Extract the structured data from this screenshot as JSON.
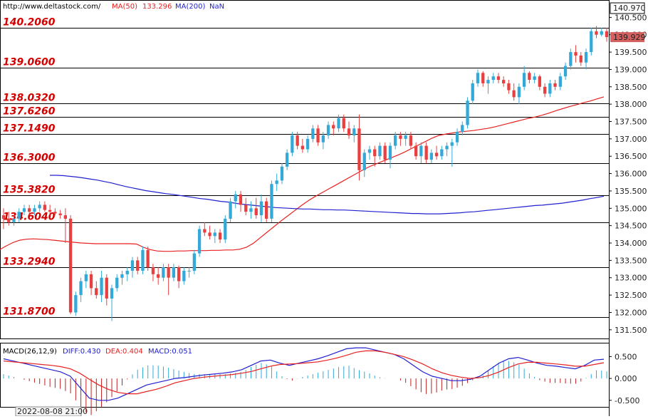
{
  "header": {
    "site": "http://www.deltastock.com/",
    "ma50_label": "MA(50)",
    "ma50_value": "133.296",
    "ma200_label": "MA(200)",
    "ma200_value": "NaN"
  },
  "macd_header": {
    "name": "MACD(26,12,9)",
    "diff_label": "DIFF:0.430",
    "dea_label": "DEA:0.404",
    "macd_label": "MACD:0.051"
  },
  "date_label": "2022-08-08 21:00",
  "chart_data": [
    {
      "type": "candlestick",
      "y_range": [
        131.25,
        141.0
      ],
      "top_price_label": "140.970",
      "current_price_label": "139.929",
      "y_ticks": [
        "140.500",
        "140.000",
        "139.500",
        "139.000",
        "138.500",
        "138.000",
        "137.500",
        "137.000",
        "136.500",
        "136.000",
        "135.500",
        "135.000",
        "134.500",
        "134.000",
        "133.500",
        "133.000",
        "132.500",
        "132.000",
        "131.500"
      ],
      "levels": [
        140.206,
        139.06,
        138.032,
        137.626,
        137.149,
        136.3,
        135.382,
        134.604,
        133.294,
        131.87
      ],
      "level_labels": [
        "140.2060",
        "139.0600",
        "138.0320",
        "137.6260",
        "137.1490",
        "136.3000",
        "135.3820",
        "134.6040",
        "133.2940",
        "131.8700"
      ],
      "colors": {
        "up": "#34a9d8",
        "down": "#e84040",
        "ma50": "#e82020",
        "ma200": "#2020d0",
        "level_line": "#000000",
        "level_text": "#d40000"
      },
      "candles": [
        [
          134.8,
          135.0,
          134.4,
          134.7
        ],
        [
          134.7,
          134.9,
          134.5,
          134.6
        ],
        [
          134.6,
          134.8,
          134.5,
          134.7
        ],
        [
          134.7,
          135.0,
          134.6,
          134.9
        ],
        [
          134.9,
          135.1,
          134.8,
          135.0
        ],
        [
          135.0,
          135.1,
          134.8,
          134.9
        ],
        [
          134.9,
          135.1,
          134.8,
          135.0
        ],
        [
          135.0,
          135.2,
          134.9,
          135.1
        ],
        [
          135.1,
          135.2,
          134.9,
          134.95
        ],
        [
          134.95,
          135.1,
          134.8,
          134.9
        ],
        [
          134.9,
          135.0,
          134.8,
          134.85
        ],
        [
          134.85,
          134.95,
          134.7,
          134.8
        ],
        [
          134.8,
          135.0,
          134.0,
          134.7
        ],
        [
          134.7,
          134.8,
          131.95,
          132.0
        ],
        [
          132.0,
          132.6,
          131.9,
          132.5
        ],
        [
          132.5,
          133.0,
          132.3,
          132.9
        ],
        [
          132.9,
          133.2,
          132.7,
          133.1
        ],
        [
          133.1,
          133.2,
          132.5,
          132.7
        ],
        [
          132.7,
          132.9,
          132.4,
          132.5
        ],
        [
          132.5,
          133.2,
          132.3,
          133.0
        ],
        [
          133.0,
          133.1,
          132.2,
          132.4
        ],
        [
          132.4,
          132.8,
          131.75,
          132.7
        ],
        [
          132.7,
          133.1,
          132.6,
          133.0
        ],
        [
          133.0,
          133.2,
          132.8,
          133.1
        ],
        [
          133.1,
          133.3,
          132.9,
          133.2
        ],
        [
          133.2,
          133.6,
          133.0,
          133.5
        ],
        [
          133.5,
          133.6,
          133.1,
          133.2
        ],
        [
          133.2,
          133.9,
          133.1,
          133.8
        ],
        [
          133.8,
          133.9,
          133.2,
          133.3
        ],
        [
          133.3,
          133.4,
          132.9,
          133.1
        ],
        [
          133.1,
          133.3,
          132.8,
          133.0
        ],
        [
          133.0,
          133.4,
          132.9,
          133.3
        ],
        [
          133.3,
          133.4,
          132.5,
          133.0
        ],
        [
          133.0,
          133.4,
          132.9,
          133.3
        ],
        [
          133.3,
          133.35,
          132.7,
          132.9
        ],
        [
          132.9,
          133.3,
          132.8,
          133.2
        ],
        [
          133.2,
          133.3,
          133.0,
          133.2
        ],
        [
          133.2,
          133.8,
          133.1,
          133.7
        ],
        [
          133.7,
          134.5,
          133.6,
          134.4
        ],
        [
          134.4,
          134.6,
          134.2,
          134.3
        ],
        [
          134.3,
          134.5,
          134.1,
          134.2
        ],
        [
          134.2,
          134.4,
          134.0,
          134.3
        ],
        [
          134.3,
          134.4,
          134.0,
          134.1
        ],
        [
          134.1,
          134.8,
          134.0,
          134.7
        ],
        [
          134.7,
          135.3,
          134.6,
          135.2
        ],
        [
          135.2,
          135.5,
          135.0,
          135.4
        ],
        [
          135.4,
          135.5,
          134.9,
          135.1
        ],
        [
          135.1,
          135.3,
          134.8,
          134.9
        ],
        [
          134.9,
          135.2,
          134.7,
          135.0
        ],
        [
          135.0,
          135.3,
          134.7,
          134.8
        ],
        [
          134.8,
          135.4,
          134.6,
          135.2
        ],
        [
          135.2,
          135.3,
          134.6,
          134.7
        ],
        [
          134.7,
          135.8,
          134.6,
          135.7
        ],
        [
          135.7,
          136.0,
          135.5,
          135.8
        ],
        [
          135.8,
          136.3,
          135.7,
          136.2
        ],
        [
          136.2,
          136.7,
          136.1,
          136.6
        ],
        [
          136.6,
          137.2,
          136.5,
          137.1
        ],
        [
          137.1,
          137.2,
          136.7,
          136.8
        ],
        [
          136.8,
          137.0,
          136.6,
          136.7
        ],
        [
          136.7,
          137.1,
          136.6,
          137.0
        ],
        [
          137.0,
          137.4,
          136.9,
          137.3
        ],
        [
          137.3,
          137.4,
          136.8,
          136.9
        ],
        [
          136.9,
          137.2,
          136.7,
          137.1
        ],
        [
          137.1,
          137.5,
          137.0,
          137.4
        ],
        [
          137.4,
          137.5,
          137.1,
          137.3
        ],
        [
          137.3,
          137.7,
          137.2,
          137.6
        ],
        [
          137.6,
          137.7,
          137.2,
          137.3
        ],
        [
          137.3,
          137.5,
          137.0,
          137.1
        ],
        [
          137.1,
          137.4,
          136.9,
          137.3
        ],
        [
          137.3,
          137.7,
          135.8,
          136.1
        ],
        [
          136.1,
          136.7,
          135.9,
          136.6
        ],
        [
          136.6,
          136.8,
          136.4,
          136.7
        ],
        [
          136.7,
          136.8,
          136.2,
          136.5
        ],
        [
          136.5,
          136.9,
          136.4,
          136.8
        ],
        [
          136.8,
          136.9,
          136.3,
          136.4
        ],
        [
          136.4,
          136.9,
          136.15,
          136.8
        ],
        [
          136.8,
          137.2,
          136.7,
          137.1
        ],
        [
          137.1,
          137.2,
          136.8,
          137.0
        ],
        [
          137.0,
          137.2,
          136.8,
          137.1
        ],
        [
          137.1,
          137.2,
          136.7,
          136.8
        ],
        [
          136.8,
          136.9,
          136.4,
          136.5
        ],
        [
          136.5,
          136.9,
          136.3,
          136.8
        ],
        [
          136.8,
          136.9,
          136.3,
          136.4
        ],
        [
          136.4,
          136.7,
          136.3,
          136.6
        ],
        [
          136.6,
          136.8,
          136.4,
          136.5
        ],
        [
          136.5,
          136.8,
          136.4,
          136.7
        ],
        [
          136.7,
          136.9,
          136.5,
          136.8
        ],
        [
          136.8,
          137.0,
          136.2,
          136.9
        ],
        [
          136.9,
          137.3,
          136.8,
          137.2
        ],
        [
          137.2,
          137.5,
          137.1,
          137.4
        ],
        [
          137.4,
          138.2,
          137.3,
          138.1
        ],
        [
          138.1,
          138.7,
          138.0,
          138.6
        ],
        [
          138.6,
          139.0,
          138.5,
          138.9
        ],
        [
          138.9,
          138.95,
          138.5,
          138.6
        ],
        [
          138.6,
          138.8,
          138.3,
          138.7
        ],
        [
          138.7,
          138.9,
          138.6,
          138.8
        ],
        [
          138.8,
          138.9,
          138.6,
          138.7
        ],
        [
          138.7,
          138.8,
          138.5,
          138.6
        ],
        [
          138.6,
          138.7,
          138.3,
          138.4
        ],
        [
          138.4,
          138.6,
          138.1,
          138.2
        ],
        [
          138.2,
          138.6,
          138.0,
          138.5
        ],
        [
          138.5,
          139.1,
          138.4,
          138.9
        ],
        [
          138.9,
          138.95,
          138.6,
          138.7
        ],
        [
          138.7,
          138.9,
          138.6,
          138.8
        ],
        [
          138.8,
          138.85,
          138.4,
          138.5
        ],
        [
          138.5,
          138.6,
          138.2,
          138.3
        ],
        [
          138.3,
          138.7,
          138.2,
          138.6
        ],
        [
          138.6,
          138.7,
          138.4,
          138.5
        ],
        [
          138.5,
          138.9,
          138.4,
          138.8
        ],
        [
          138.8,
          139.2,
          138.7,
          139.1
        ],
        [
          139.1,
          139.6,
          139.0,
          139.5
        ],
        [
          139.5,
          139.7,
          139.2,
          139.4
        ],
        [
          139.4,
          139.5,
          139.1,
          139.2
        ],
        [
          139.2,
          139.6,
          139.0,
          139.5
        ],
        [
          139.5,
          140.2,
          139.4,
          140.1
        ],
        [
          140.1,
          140.25,
          139.9,
          140.0
        ],
        [
          140.0,
          140.2,
          139.95,
          140.1
        ],
        [
          140.1,
          140.2,
          139.8,
          139.93
        ]
      ],
      "ma50": [
        133.23,
        133.39,
        133.53,
        133.67,
        133.8,
        133.91,
        134.01,
        134.08,
        134.11,
        134.12,
        134.11,
        134.1,
        134.08,
        134.06,
        134.04,
        134.02,
        134.0,
        133.99,
        133.98,
        133.98,
        133.98,
        133.98,
        133.98,
        133.98,
        133.97,
        133.88,
        133.81,
        133.77,
        133.76,
        133.76,
        133.77,
        133.77,
        133.78,
        133.78,
        133.78,
        133.79,
        133.79,
        133.8,
        133.8,
        133.82,
        133.88,
        133.99,
        134.15,
        134.31,
        134.47,
        134.63,
        134.78,
        134.93,
        135.08,
        135.22,
        135.34,
        135.45,
        135.56,
        135.67,
        135.78,
        135.89,
        136.0,
        136.11,
        136.21,
        136.29,
        136.37,
        136.45,
        136.53,
        136.62,
        136.72,
        136.82,
        136.92,
        137.02,
        137.1,
        137.14,
        137.17,
        137.2,
        137.22,
        137.24,
        137.27,
        137.3,
        137.34,
        137.39,
        137.44,
        137.49,
        137.54,
        137.59,
        137.63,
        137.68,
        137.74,
        137.81,
        137.87,
        137.93,
        137.98,
        138.04,
        138.09,
        138.15,
        138.21
      ],
      "ma50_start": 0,
      "ma200": [
        135.95,
        135.95,
        135.94,
        135.92,
        135.9,
        135.87,
        135.84,
        135.81,
        135.77,
        135.73,
        135.68,
        135.63,
        135.59,
        135.55,
        135.51,
        135.48,
        135.45,
        135.42,
        135.4,
        135.37,
        135.34,
        135.31,
        135.28,
        135.26,
        135.23,
        135.2,
        135.18,
        135.15,
        135.12,
        135.1,
        135.08,
        135.06,
        135.04,
        135.02,
        135.01,
        135.0,
        134.99,
        134.98,
        134.98,
        134.97,
        134.96,
        134.96,
        134.95,
        134.95,
        134.94,
        134.93,
        134.92,
        134.91,
        134.9,
        134.89,
        134.88,
        134.87,
        134.86,
        134.85,
        134.85,
        134.84,
        134.84,
        134.84,
        134.85,
        134.86,
        134.87,
        134.89,
        134.9,
        134.92,
        134.94,
        134.96,
        134.98,
        135.0,
        135.02,
        135.04,
        135.06,
        135.08,
        135.09,
        135.11,
        135.13,
        135.15,
        135.18,
        135.21,
        135.24,
        135.28,
        135.31,
        135.35
      ],
      "ma200_start": 10
    },
    {
      "type": "macd",
      "y_range": [
        -0.65,
        0.8
      ],
      "y_ticks": [
        "0.500",
        "0.000",
        "-0.500"
      ],
      "diff": [
        0.45,
        0.4,
        0.35,
        0.3,
        0.25,
        0.2,
        0.15,
        0.05,
        -0.2,
        -0.45,
        -0.5,
        -0.5,
        -0.45,
        -0.35,
        -0.25,
        -0.15,
        -0.1,
        -0.05,
        0,
        0.02,
        0.05,
        0.08,
        0.1,
        0.12,
        0.15,
        0.2,
        0.3,
        0.4,
        0.42,
        0.35,
        0.3,
        0.35,
        0.4,
        0.45,
        0.52,
        0.6,
        0.68,
        0.7,
        0.7,
        0.65,
        0.6,
        0.55,
        0.45,
        0.3,
        0.15,
        0.05,
        0,
        -0.05,
        -0.05,
        -0.02,
        0.05,
        0.2,
        0.35,
        0.45,
        0.48,
        0.42,
        0.35,
        0.3,
        0.28,
        0.25,
        0.22,
        0.3,
        0.42,
        0.44
      ],
      "dea": [
        0.4,
        0.38,
        0.36,
        0.34,
        0.32,
        0.3,
        0.27,
        0.22,
        0.12,
        -0.02,
        -0.15,
        -0.25,
        -0.32,
        -0.35,
        -0.35,
        -0.3,
        -0.25,
        -0.18,
        -0.1,
        -0.05,
        0,
        0.03,
        0.05,
        0.07,
        0.09,
        0.12,
        0.16,
        0.22,
        0.28,
        0.32,
        0.33,
        0.34,
        0.36,
        0.38,
        0.42,
        0.47,
        0.53,
        0.6,
        0.63,
        0.63,
        0.6,
        0.55,
        0.5,
        0.42,
        0.33,
        0.22,
        0.13,
        0.07,
        0.03,
        0,
        0.02,
        0.07,
        0.15,
        0.25,
        0.33,
        0.37,
        0.37,
        0.35,
        0.33,
        0.31,
        0.28,
        0.28,
        0.32,
        0.36
      ],
      "colors": {
        "diff": "#2020d0",
        "dea": "#e82020",
        "bar_pos": "#34a9d8",
        "bar_neg": "#c02020"
      }
    }
  ]
}
